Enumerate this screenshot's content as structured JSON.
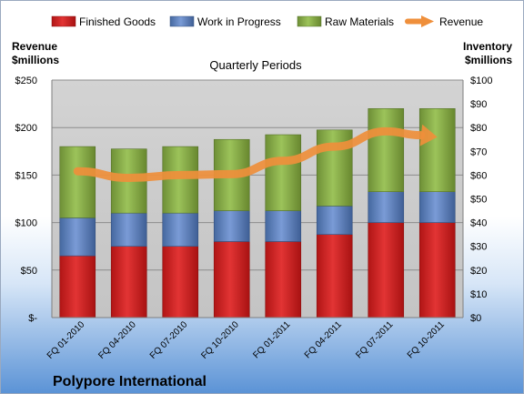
{
  "chart_data": {
    "type": "bar",
    "stacked": true,
    "title": "Quarterly Periods",
    "company": "Polypore International",
    "ylabel_left": [
      "Revenue",
      "$millions"
    ],
    "ylabel_right": [
      "Inventory",
      "$millions"
    ],
    "categories": [
      "FQ 01-2010",
      "FQ 04-2010",
      "FQ 07-2010",
      "FQ 10-2010",
      "FQ 01-2011",
      "FQ 04-2011",
      "FQ 07-2011",
      "FQ 10-2011"
    ],
    "left_axis": {
      "ylim": [
        0,
        250
      ],
      "ticks": [
        0,
        50,
        100,
        150,
        200,
        250
      ],
      "tick_labels": [
        "$-",
        "$50",
        "$100",
        "$150",
        "$200",
        "$250"
      ]
    },
    "right_axis": {
      "ylim": [
        0,
        100
      ],
      "ticks": [
        0,
        10,
        20,
        30,
        40,
        50,
        60,
        70,
        80,
        90,
        100
      ],
      "tick_labels": [
        "$0",
        "$10",
        "$20",
        "$30",
        "$40",
        "$50",
        "$60",
        "$70",
        "$80",
        "$90",
        "$100"
      ]
    },
    "series": [
      {
        "name": "Finished Goods",
        "axis": "right",
        "kind": "bar",
        "color": "#d42424",
        "values": [
          26,
          30,
          30,
          32,
          32,
          35,
          40,
          40
        ]
      },
      {
        "name": "Work in Progress",
        "axis": "right",
        "kind": "bar",
        "color": "#5c82c4",
        "values": [
          16,
          14,
          14,
          13,
          13,
          12,
          13,
          13
        ]
      },
      {
        "name": "Raw Materials",
        "axis": "right",
        "kind": "bar",
        "color": "#8db04a",
        "values": [
          30,
          27,
          28,
          30,
          32,
          32,
          35,
          35
        ]
      },
      {
        "name": "Revenue",
        "axis": "left",
        "kind": "line",
        "color": "#ef8f3b",
        "values": [
          154,
          147,
          150,
          151,
          165,
          180,
          196,
          190
        ]
      }
    ],
    "legend_position": "top",
    "grid": true
  }
}
